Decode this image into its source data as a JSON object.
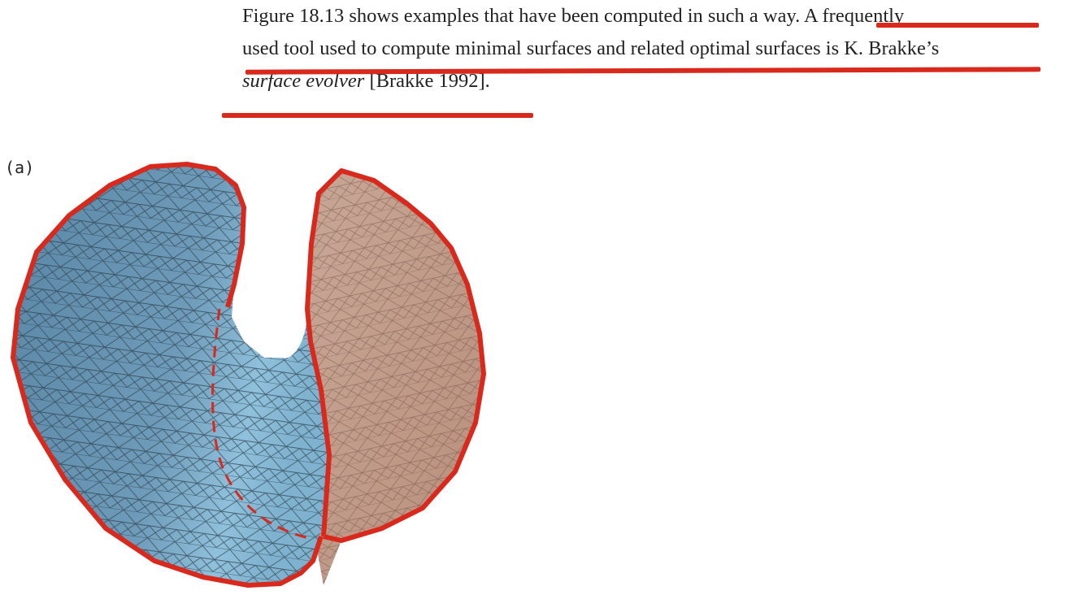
{
  "paragraph": {
    "line1": "Figure 18.13 shows examples that have been computed in such a way. A frequently",
    "line2": "used tool used to compute minimal surfaces and related optimal surfaces is K. Brakke’s",
    "line3_italic": "surface evolver",
    "line3_rest": " [Brakke 1992]."
  },
  "figure": {
    "panel_label": "(a)"
  },
  "colors": {
    "annotation_red": "#d9281c",
    "surface_blue": "#6a97b5",
    "surface_brown": "#c89e8c",
    "mesh_line": "#2b3c48"
  }
}
